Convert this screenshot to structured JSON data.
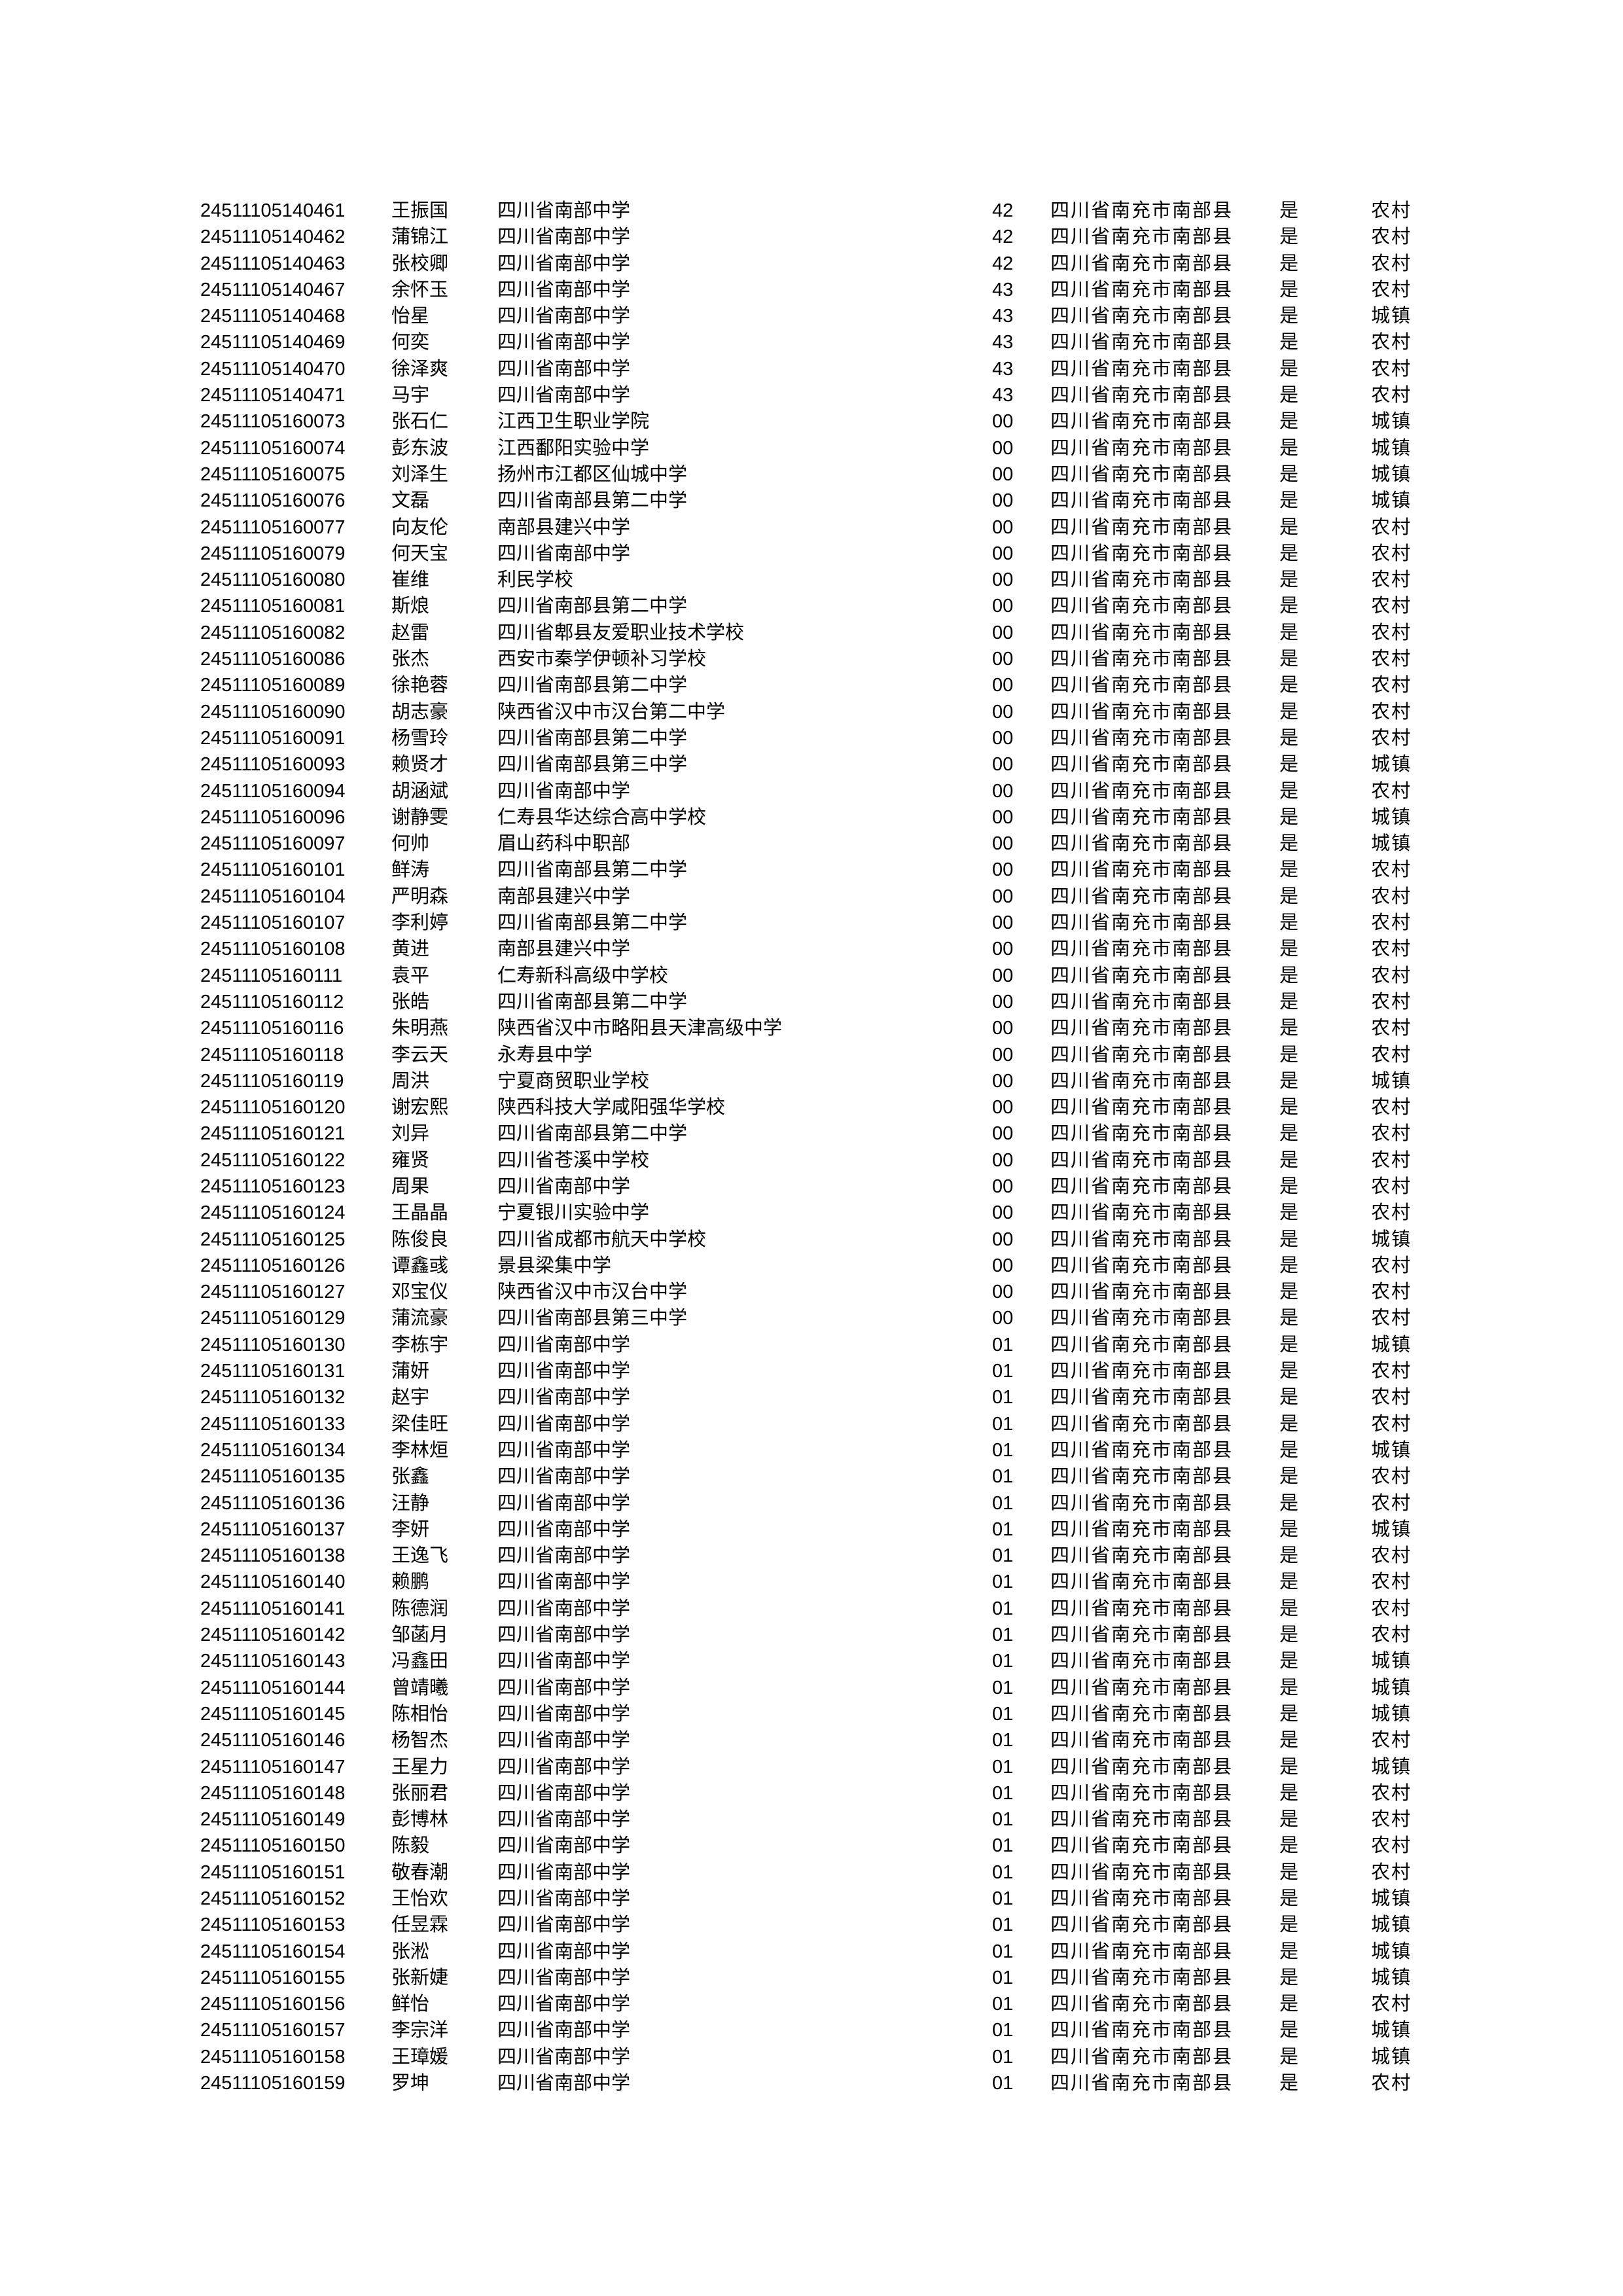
{
  "rows": [
    [
      "24511105140461",
      "王振国",
      "四川省南部中学",
      "42",
      "四川省南充市南部县",
      "是",
      "农村"
    ],
    [
      "24511105140462",
      "蒲锦江",
      "四川省南部中学",
      "42",
      "四川省南充市南部县",
      "是",
      "农村"
    ],
    [
      "24511105140463",
      "张校卿",
      "四川省南部中学",
      "42",
      "四川省南充市南部县",
      "是",
      "农村"
    ],
    [
      "24511105140467",
      "余怀玉",
      "四川省南部中学",
      "43",
      "四川省南充市南部县",
      "是",
      "农村"
    ],
    [
      "24511105140468",
      "怡星",
      "四川省南部中学",
      "43",
      "四川省南充市南部县",
      "是",
      "城镇"
    ],
    [
      "24511105140469",
      "何奕",
      "四川省南部中学",
      "43",
      "四川省南充市南部县",
      "是",
      "农村"
    ],
    [
      "24511105140470",
      "徐泽爽",
      "四川省南部中学",
      "43",
      "四川省南充市南部县",
      "是",
      "农村"
    ],
    [
      "24511105140471",
      "马宇",
      "四川省南部中学",
      "43",
      "四川省南充市南部县",
      "是",
      "农村"
    ],
    [
      "24511105160073",
      "张石仁",
      "江西卫生职业学院",
      "00",
      "四川省南充市南部县",
      "是",
      "城镇"
    ],
    [
      "24511105160074",
      "彭东波",
      "江西鄱阳实验中学",
      "00",
      "四川省南充市南部县",
      "是",
      "城镇"
    ],
    [
      "24511105160075",
      "刘泽生",
      "扬州市江都区仙城中学",
      "00",
      "四川省南充市南部县",
      "是",
      "城镇"
    ],
    [
      "24511105160076",
      "文磊",
      "四川省南部县第二中学",
      "00",
      "四川省南充市南部县",
      "是",
      "城镇"
    ],
    [
      "24511105160077",
      "向友伦",
      "南部县建兴中学",
      "00",
      "四川省南充市南部县",
      "是",
      "农村"
    ],
    [
      "24511105160079",
      "何天宝",
      "四川省南部中学",
      "00",
      "四川省南充市南部县",
      "是",
      "农村"
    ],
    [
      "24511105160080",
      "崔维",
      "利民学校",
      "00",
      "四川省南充市南部县",
      "是",
      "农村"
    ],
    [
      "24511105160081",
      "斯烺",
      "四川省南部县第二中学",
      "00",
      "四川省南充市南部县",
      "是",
      "农村"
    ],
    [
      "24511105160082",
      "赵雷",
      "四川省郫县友爱职业技术学校",
      "00",
      "四川省南充市南部县",
      "是",
      "农村"
    ],
    [
      "24511105160086",
      "张杰",
      "西安市秦学伊顿补习学校",
      "00",
      "四川省南充市南部县",
      "是",
      "农村"
    ],
    [
      "24511105160089",
      "徐艳蓉",
      "四川省南部县第二中学",
      "00",
      "四川省南充市南部县",
      "是",
      "农村"
    ],
    [
      "24511105160090",
      "胡志豪",
      "陕西省汉中市汉台第二中学",
      "00",
      "四川省南充市南部县",
      "是",
      "农村"
    ],
    [
      "24511105160091",
      "杨雪玲",
      "四川省南部县第二中学",
      "00",
      "四川省南充市南部县",
      "是",
      "农村"
    ],
    [
      "24511105160093",
      "赖贤才",
      "四川省南部县第三中学",
      "00",
      "四川省南充市南部县",
      "是",
      "城镇"
    ],
    [
      "24511105160094",
      "胡涵斌",
      "四川省南部中学",
      "00",
      "四川省南充市南部县",
      "是",
      "农村"
    ],
    [
      "24511105160096",
      "谢静雯",
      "仁寿县华达综合高中学校",
      "00",
      "四川省南充市南部县",
      "是",
      "城镇"
    ],
    [
      "24511105160097",
      "何帅",
      "眉山药科中职部",
      "00",
      "四川省南充市南部县",
      "是",
      "城镇"
    ],
    [
      "24511105160101",
      "鲜涛",
      "四川省南部县第二中学",
      "00",
      "四川省南充市南部县",
      "是",
      "农村"
    ],
    [
      "24511105160104",
      "严明森",
      "南部县建兴中学",
      "00",
      "四川省南充市南部县",
      "是",
      "农村"
    ],
    [
      "24511105160107",
      "李利婷",
      "四川省南部县第二中学",
      "00",
      "四川省南充市南部县",
      "是",
      "农村"
    ],
    [
      "24511105160108",
      "黄进",
      "南部县建兴中学",
      "00",
      "四川省南充市南部县",
      "是",
      "农村"
    ],
    [
      "24511105160111",
      "袁平",
      "仁寿新科高级中学校",
      "00",
      "四川省南充市南部县",
      "是",
      "农村"
    ],
    [
      "24511105160112",
      "张皓",
      "四川省南部县第二中学",
      "00",
      "四川省南充市南部县",
      "是",
      "农村"
    ],
    [
      "24511105160116",
      "朱明燕",
      "陕西省汉中市略阳县天津高级中学",
      "00",
      "四川省南充市南部县",
      "是",
      "农村"
    ],
    [
      "24511105160118",
      "李云天",
      "永寿县中学",
      "00",
      "四川省南充市南部县",
      "是",
      "农村"
    ],
    [
      "24511105160119",
      "周洪",
      "宁夏商贸职业学校",
      "00",
      "四川省南充市南部县",
      "是",
      "城镇"
    ],
    [
      "24511105160120",
      "谢宏熙",
      "陕西科技大学咸阳强华学校",
      "00",
      "四川省南充市南部县",
      "是",
      "农村"
    ],
    [
      "24511105160121",
      "刘异",
      "四川省南部县第二中学",
      "00",
      "四川省南充市南部县",
      "是",
      "农村"
    ],
    [
      "24511105160122",
      "雍贤",
      "四川省苍溪中学校",
      "00",
      "四川省南充市南部县",
      "是",
      "农村"
    ],
    [
      "24511105160123",
      "周果",
      "四川省南部中学",
      "00",
      "四川省南充市南部县",
      "是",
      "农村"
    ],
    [
      "24511105160124",
      "王晶晶",
      "宁夏银川实验中学",
      "00",
      "四川省南充市南部县",
      "是",
      "农村"
    ],
    [
      "24511105160125",
      "陈俊良",
      "四川省成都市航天中学校",
      "00",
      "四川省南充市南部县",
      "是",
      "城镇"
    ],
    [
      "24511105160126",
      "谭鑫彧",
      "景县梁集中学",
      "00",
      "四川省南充市南部县",
      "是",
      "农村"
    ],
    [
      "24511105160127",
      "邓宝仪",
      "陕西省汉中市汉台中学",
      "00",
      "四川省南充市南部县",
      "是",
      "农村"
    ],
    [
      "24511105160129",
      "蒲流豪",
      "四川省南部县第三中学",
      "00",
      "四川省南充市南部县",
      "是",
      "农村"
    ],
    [
      "24511105160130",
      "李栋宇",
      "四川省南部中学",
      "01",
      "四川省南充市南部县",
      "是",
      "城镇"
    ],
    [
      "24511105160131",
      "蒲妍",
      "四川省南部中学",
      "01",
      "四川省南充市南部县",
      "是",
      "农村"
    ],
    [
      "24511105160132",
      "赵宇",
      "四川省南部中学",
      "01",
      "四川省南充市南部县",
      "是",
      "农村"
    ],
    [
      "24511105160133",
      "梁佳旺",
      "四川省南部中学",
      "01",
      "四川省南充市南部县",
      "是",
      "农村"
    ],
    [
      "24511105160134",
      "李林烜",
      "四川省南部中学",
      "01",
      "四川省南充市南部县",
      "是",
      "城镇"
    ],
    [
      "24511105160135",
      "张鑫",
      "四川省南部中学",
      "01",
      "四川省南充市南部县",
      "是",
      "农村"
    ],
    [
      "24511105160136",
      "汪静",
      "四川省南部中学",
      "01",
      "四川省南充市南部县",
      "是",
      "农村"
    ],
    [
      "24511105160137",
      "李妍",
      "四川省南部中学",
      "01",
      "四川省南充市南部县",
      "是",
      "城镇"
    ],
    [
      "24511105160138",
      "王逸飞",
      "四川省南部中学",
      "01",
      "四川省南充市南部县",
      "是",
      "农村"
    ],
    [
      "24511105160140",
      "赖鹏",
      "四川省南部中学",
      "01",
      "四川省南充市南部县",
      "是",
      "农村"
    ],
    [
      "24511105160141",
      "陈德润",
      "四川省南部中学",
      "01",
      "四川省南充市南部县",
      "是",
      "农村"
    ],
    [
      "24511105160142",
      "邹菡月",
      "四川省南部中学",
      "01",
      "四川省南充市南部县",
      "是",
      "农村"
    ],
    [
      "24511105160143",
      "冯鑫田",
      "四川省南部中学",
      "01",
      "四川省南充市南部县",
      "是",
      "城镇"
    ],
    [
      "24511105160144",
      "曾靖曦",
      "四川省南部中学",
      "01",
      "四川省南充市南部县",
      "是",
      "城镇"
    ],
    [
      "24511105160145",
      "陈相怡",
      "四川省南部中学",
      "01",
      "四川省南充市南部县",
      "是",
      "城镇"
    ],
    [
      "24511105160146",
      "杨智杰",
      "四川省南部中学",
      "01",
      "四川省南充市南部县",
      "是",
      "农村"
    ],
    [
      "24511105160147",
      "王星力",
      "四川省南部中学",
      "01",
      "四川省南充市南部县",
      "是",
      "城镇"
    ],
    [
      "24511105160148",
      "张丽君",
      "四川省南部中学",
      "01",
      "四川省南充市南部县",
      "是",
      "农村"
    ],
    [
      "24511105160149",
      "彭博林",
      "四川省南部中学",
      "01",
      "四川省南充市南部县",
      "是",
      "农村"
    ],
    [
      "24511105160150",
      "陈毅",
      "四川省南部中学",
      "01",
      "四川省南充市南部县",
      "是",
      "农村"
    ],
    [
      "24511105160151",
      "敬春潮",
      "四川省南部中学",
      "01",
      "四川省南充市南部县",
      "是",
      "农村"
    ],
    [
      "24511105160152",
      "王怡欢",
      "四川省南部中学",
      "01",
      "四川省南充市南部县",
      "是",
      "城镇"
    ],
    [
      "24511105160153",
      "任昱霖",
      "四川省南部中学",
      "01",
      "四川省南充市南部县",
      "是",
      "城镇"
    ],
    [
      "24511105160154",
      "张淞",
      "四川省南部中学",
      "01",
      "四川省南充市南部县",
      "是",
      "城镇"
    ],
    [
      "24511105160155",
      "张新婕",
      "四川省南部中学",
      "01",
      "四川省南充市南部县",
      "是",
      "城镇"
    ],
    [
      "24511105160156",
      "鲜怡",
      "四川省南部中学",
      "01",
      "四川省南充市南部县",
      "是",
      "农村"
    ],
    [
      "24511105160157",
      "李宗洋",
      "四川省南部中学",
      "01",
      "四川省南充市南部县",
      "是",
      "城镇"
    ],
    [
      "24511105160158",
      "王璋媛",
      "四川省南部中学",
      "01",
      "四川省南充市南部县",
      "是",
      "城镇"
    ],
    [
      "24511105160159",
      "罗坤",
      "四川省南部中学",
      "01",
      "四川省南充市南部县",
      "是",
      "农村"
    ]
  ]
}
